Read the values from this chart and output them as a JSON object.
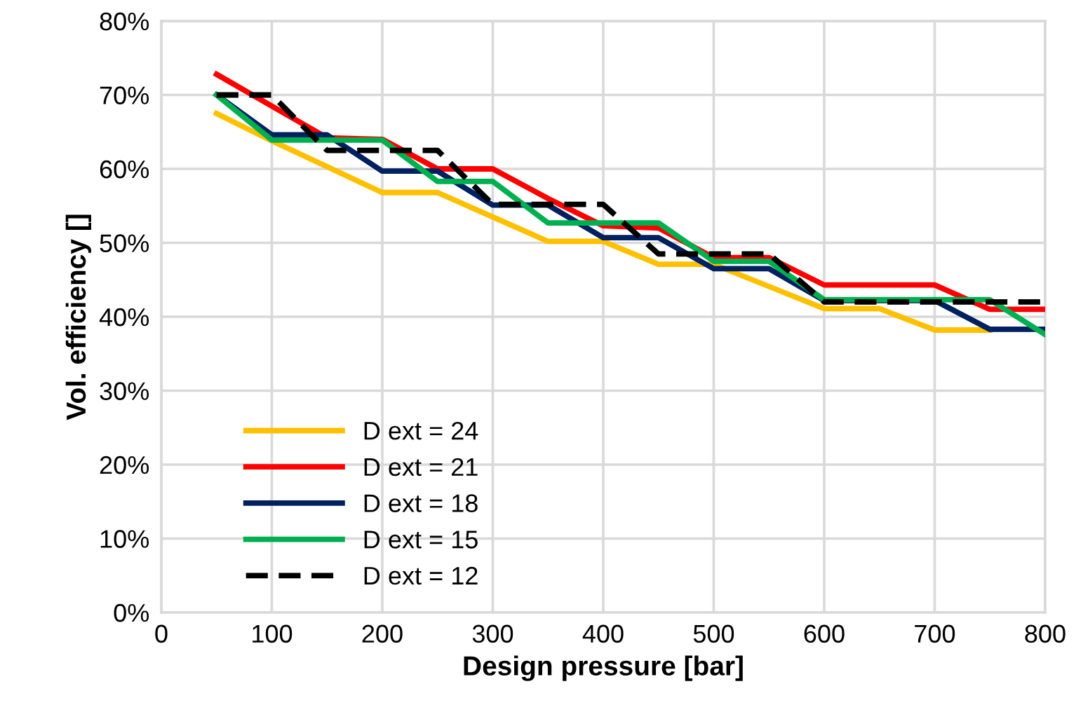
{
  "chart_data": {
    "type": "line",
    "xlabel": "Design pressure [bar]",
    "ylabel": "Vol. efficiency []",
    "x": [
      50,
      100,
      150,
      200,
      250,
      300,
      350,
      400,
      450,
      500,
      550,
      600,
      650,
      700,
      750,
      800
    ],
    "series": [
      {
        "name": "D ext = 24",
        "color": "#ffc000",
        "values": [
          67.5,
          63.8,
          60.3,
          56.8,
          56.8,
          53.5,
          50.2,
          50.2,
          47.1,
          47.1,
          44.1,
          41.1,
          41.1,
          38.2,
          38.2,
          null
        ]
      },
      {
        "name": "D ext = 21",
        "color": "#ff0000",
        "values": [
          72.8,
          68.5,
          64.2,
          64,
          60,
          60,
          56,
          52.3,
          52,
          48,
          48,
          44.3,
          44.3,
          44.3,
          41,
          41
        ]
      },
      {
        "name": "D ext = 18",
        "color": "#002060",
        "values": [
          70,
          64.6,
          64.6,
          59.7,
          59.7,
          55.1,
          55.1,
          50.7,
          50.7,
          46.5,
          46.5,
          42.2,
          42.2,
          42.2,
          38.3,
          38.3
        ]
      },
      {
        "name": "D ext = 15",
        "color": "#00b050",
        "values": [
          70,
          63.9,
          63.9,
          63.9,
          58.3,
          58.3,
          52.7,
          52.7,
          52.7,
          47.5,
          47.5,
          42.3,
          42.3,
          42.3,
          42.3,
          37.6
        ]
      },
      {
        "name": "D ext = 12",
        "color": "#000000",
        "line_style": "dashed",
        "values": [
          70,
          70,
          62.5,
          62.5,
          62.5,
          55.2,
          55.2,
          55.2,
          48.5,
          48.5,
          48.5,
          42,
          42,
          42,
          42,
          42
        ]
      }
    ],
    "xlim": [
      0,
      800
    ],
    "xticks": [
      0,
      100,
      200,
      300,
      400,
      500,
      600,
      700,
      800
    ],
    "ylim": [
      0,
      80
    ],
    "yticks": [
      {
        "value": 0,
        "label": "0%"
      },
      {
        "value": 10,
        "label": "10%"
      },
      {
        "value": 20,
        "label": "20%"
      },
      {
        "value": 30,
        "label": "30%"
      },
      {
        "value": 40,
        "label": "40%"
      },
      {
        "value": 50,
        "label": "50%"
      },
      {
        "value": 60,
        "label": "60%"
      },
      {
        "value": 70,
        "label": "70%"
      },
      {
        "value": 80,
        "label": "80%"
      }
    ],
    "grid": true,
    "legend": "bottom left",
    "marker": "none"
  }
}
